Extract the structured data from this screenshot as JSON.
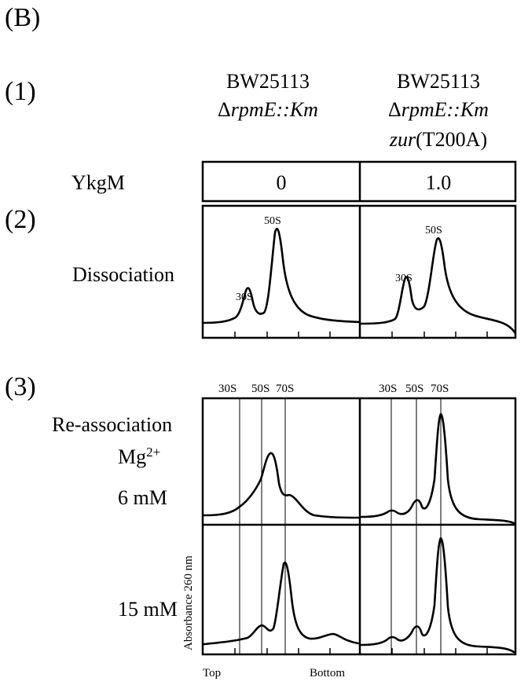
{
  "figure": {
    "panel_label": "(B)",
    "sections": {
      "s1": "(1)",
      "s2": "(2)",
      "s3": "(3)"
    },
    "strains": {
      "left": {
        "name": "BW25113",
        "genotype_delta": "Δ",
        "genotype_italic": "rpmE::Km"
      },
      "right": {
        "name": "BW25113",
        "genotype_delta": "Δ",
        "genotype_italic": "rpmE::Km",
        "extra_italic": "zur",
        "extra_normal": "(T200A)"
      }
    },
    "ykgm": {
      "label": "YkgM",
      "left_value": "0",
      "right_value": "1.0"
    },
    "dissociation": {
      "label": "Dissociation",
      "left_peaks": [
        "30S",
        "50S"
      ],
      "right_peaks": [
        "30S",
        "50S"
      ]
    },
    "reassociation": {
      "label": "Re-association",
      "mg_base": "Mg",
      "mg_sup": "2+",
      "conc_1": "6 mM",
      "conc_2": "15 mM",
      "left_header": [
        "30S",
        "50S",
        "70S"
      ],
      "right_header": [
        "30S",
        "50S",
        "70S"
      ]
    },
    "axis": {
      "ylabel": "Absorbance 260 nm",
      "x_left": "Top",
      "x_right": "Bottom"
    }
  }
}
